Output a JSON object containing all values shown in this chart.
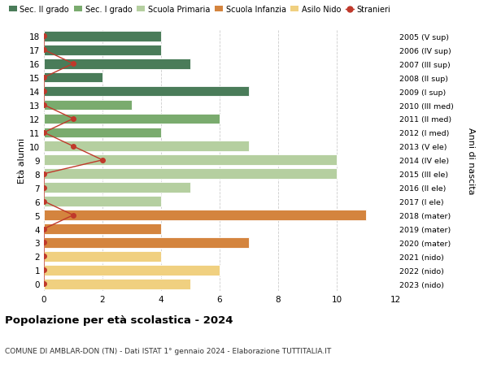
{
  "ages": [
    18,
    17,
    16,
    15,
    14,
    13,
    12,
    11,
    10,
    9,
    8,
    7,
    6,
    5,
    4,
    3,
    2,
    1,
    0
  ],
  "right_labels": [
    "2005 (V sup)",
    "2006 (IV sup)",
    "2007 (III sup)",
    "2008 (II sup)",
    "2009 (I sup)",
    "2010 (III med)",
    "2011 (II med)",
    "2012 (I med)",
    "2013 (V ele)",
    "2014 (IV ele)",
    "2015 (III ele)",
    "2016 (II ele)",
    "2017 (I ele)",
    "2018 (mater)",
    "2019 (mater)",
    "2020 (mater)",
    "2021 (nido)",
    "2022 (nido)",
    "2023 (nido)"
  ],
  "bar_values": [
    4,
    4,
    5,
    2,
    7,
    3,
    6,
    4,
    7,
    10,
    10,
    5,
    4,
    11,
    4,
    7,
    4,
    6,
    5
  ],
  "bar_colors": [
    "#4a7c59",
    "#4a7c59",
    "#4a7c59",
    "#4a7c59",
    "#4a7c59",
    "#7aab6e",
    "#7aab6e",
    "#7aab6e",
    "#b5cfa0",
    "#b5cfa0",
    "#b5cfa0",
    "#b5cfa0",
    "#b5cfa0",
    "#d4843e",
    "#d4843e",
    "#d4843e",
    "#f0d080",
    "#f0d080",
    "#f0d080"
  ],
  "stranieri_values": [
    0,
    0,
    1,
    0,
    0,
    0,
    1,
    0,
    1,
    2,
    0,
    0,
    0,
    1,
    0,
    0,
    0,
    0,
    0
  ],
  "stranieri_color": "#c0392b",
  "legend_labels": [
    "Sec. II grado",
    "Sec. I grado",
    "Scuola Primaria",
    "Scuola Infanzia",
    "Asilo Nido",
    "Stranieri"
  ],
  "legend_colors": [
    "#4a7c59",
    "#7aab6e",
    "#b5cfa0",
    "#d4843e",
    "#f0d080",
    "#c0392b"
  ],
  "ylabel_text": "Età alunni",
  "right_ylabel_text": "Anni di nascita",
  "title_bold": "Popolazione per età scolastica - 2024",
  "subtitle": "COMUNE DI AMBLAR-DON (TN) - Dati ISTAT 1° gennaio 2024 - Elaborazione TUTTITALIA.IT",
  "xlim": [
    0,
    12
  ],
  "xticks": [
    0,
    2,
    4,
    6,
    8,
    10,
    12
  ],
  "background_color": "#ffffff",
  "grid_color": "#cccccc"
}
